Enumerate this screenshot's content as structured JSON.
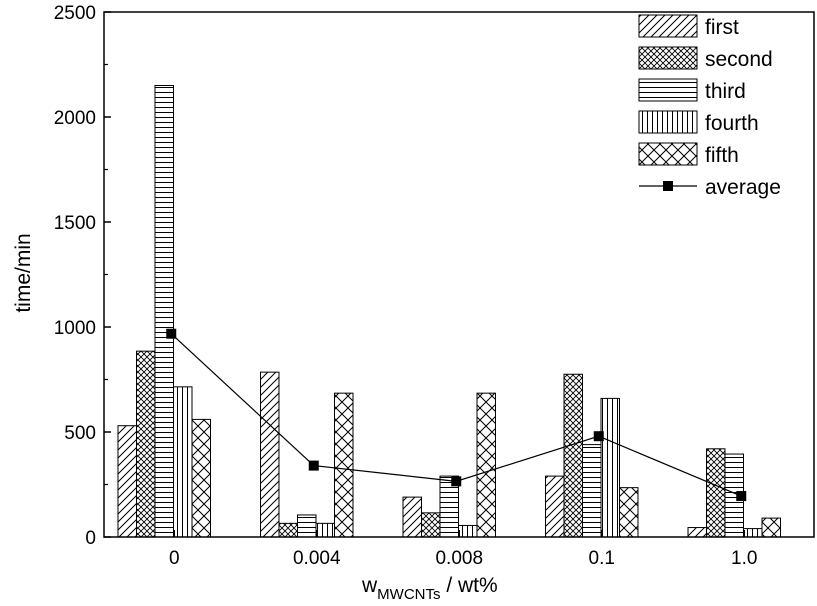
{
  "chart_data": {
    "type": "bar",
    "categories": [
      "0",
      "0.004",
      "0.008",
      "0.1",
      "1.0"
    ],
    "series": [
      {
        "name": "first",
        "pattern": "diagonal",
        "values": [
          530,
          785,
          190,
          290,
          45
        ]
      },
      {
        "name": "second",
        "pattern": "crosshatch",
        "values": [
          885,
          65,
          115,
          775,
          420
        ]
      },
      {
        "name": "third",
        "pattern": "horizontal",
        "values": [
          2150,
          105,
          290,
          440,
          395
        ]
      },
      {
        "name": "fourth",
        "pattern": "vertical",
        "values": [
          715,
          65,
          55,
          660,
          40
        ]
      },
      {
        "name": "fifth",
        "pattern": "diamond",
        "values": [
          560,
          685,
          685,
          235,
          90
        ]
      }
    ],
    "line_series": {
      "name": "average",
      "values": [
        968,
        340,
        265,
        480,
        195
      ]
    },
    "ylabel": "time/min",
    "xlabel_main": "w",
    "xlabel_sub": "MWCNTs",
    "xlabel_unit": " / wt%",
    "ylim": [
      0,
      2500
    ],
    "yticks": [
      0,
      500,
      1000,
      1500,
      2000,
      2500
    ],
    "legend_position": "top-right",
    "grid": false,
    "colors": {
      "ink": "#000000",
      "fill": "#ffffff"
    }
  }
}
